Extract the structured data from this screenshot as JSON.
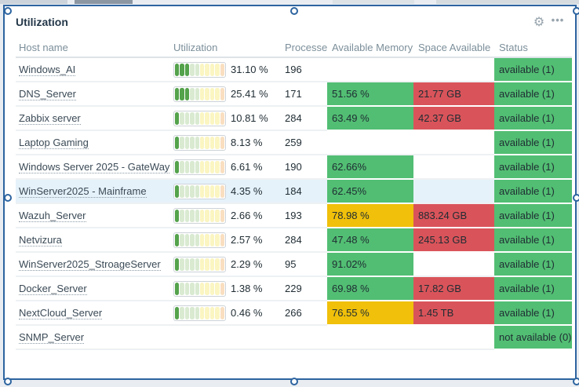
{
  "widget": {
    "title": "Utilization",
    "gear_icon": "⚙",
    "menu_icon": "•••"
  },
  "colors": {
    "selection_blue": "#2d64a0",
    "cell_green": "#52be73",
    "cell_yellow": "#f0c00a",
    "cell_red": "#d9545a",
    "bar_filled_green": "#54a24b",
    "row_highlight": "#e6f2fa"
  },
  "table": {
    "columns": [
      "Host name",
      "Utilization",
      "Processes",
      "Available Memory",
      "Space Available",
      "Status"
    ],
    "bar_segments_total": 10,
    "rows": [
      {
        "host": "Windows_AI",
        "util_pct": "31.10 %",
        "util_filled": 3,
        "processes": "196",
        "memory": null,
        "space": null,
        "status": {
          "text": "available (1)",
          "color": "green"
        },
        "highlighted": false
      },
      {
        "host": "DNS_Server",
        "util_pct": "25.41 %",
        "util_filled": 3,
        "processes": "171",
        "memory": {
          "text": "51.56 %",
          "color": "green"
        },
        "space": {
          "text": "21.77 GB",
          "color": "red"
        },
        "status": {
          "text": "available (1)",
          "color": "green"
        },
        "highlighted": false
      },
      {
        "host": "Zabbix server",
        "util_pct": "10.81 %",
        "util_filled": 1,
        "processes": "284",
        "memory": {
          "text": "63.49 %",
          "color": "green"
        },
        "space": {
          "text": "42.37 GB",
          "color": "red"
        },
        "status": {
          "text": "available (1)",
          "color": "green"
        },
        "highlighted": false
      },
      {
        "host": "Laptop Gaming",
        "util_pct": "8.13 %",
        "util_filled": 1,
        "processes": "259",
        "memory": null,
        "space": null,
        "status": {
          "text": "available (1)",
          "color": "green"
        },
        "highlighted": false
      },
      {
        "host": "Windows Server 2025 - GateWay",
        "util_pct": "6.61 %",
        "util_filled": 1,
        "processes": "190",
        "memory": {
          "text": "62.66%",
          "color": "green"
        },
        "space": null,
        "status": {
          "text": "available (1)",
          "color": "green"
        },
        "highlighted": false
      },
      {
        "host": "WinServer2025 - Mainframe",
        "util_pct": "4.35 %",
        "util_filled": 1,
        "processes": "184",
        "memory": {
          "text": "62.45%",
          "color": "green"
        },
        "space": null,
        "status": {
          "text": "available (1)",
          "color": "green"
        },
        "highlighted": true
      },
      {
        "host": "Wazuh_Server",
        "util_pct": "2.66 %",
        "util_filled": 1,
        "processes": "193",
        "memory": {
          "text": "78.98 %",
          "color": "yellow"
        },
        "space": {
          "text": "883.24 GB",
          "color": "red"
        },
        "status": {
          "text": "available (1)",
          "color": "green"
        },
        "highlighted": false
      },
      {
        "host": "Netvizura",
        "util_pct": "2.57 %",
        "util_filled": 1,
        "processes": "284",
        "memory": {
          "text": "47.48 %",
          "color": "green"
        },
        "space": {
          "text": "245.13 GB",
          "color": "red"
        },
        "status": {
          "text": "available (1)",
          "color": "green"
        },
        "highlighted": false
      },
      {
        "host": "WinServer2025_StroageServer",
        "util_pct": "2.29 %",
        "util_filled": 1,
        "processes": "95",
        "memory": {
          "text": "91.02%",
          "color": "green"
        },
        "space": null,
        "status": {
          "text": "available (1)",
          "color": "green"
        },
        "highlighted": false
      },
      {
        "host": "Docker_Server",
        "util_pct": "1.38 %",
        "util_filled": 1,
        "processes": "229",
        "memory": {
          "text": "69.98 %",
          "color": "green"
        },
        "space": {
          "text": "17.82 GB",
          "color": "red"
        },
        "status": {
          "text": "available (1)",
          "color": "green"
        },
        "highlighted": false
      },
      {
        "host": "NextCloud_Server",
        "util_pct": "0.46 %",
        "util_filled": 1,
        "processes": "266",
        "memory": {
          "text": "76.55 %",
          "color": "yellow"
        },
        "space": {
          "text": "1.45 TB",
          "color": "red"
        },
        "status": {
          "text": "available (1)",
          "color": "green"
        },
        "highlighted": false
      },
      {
        "host": "SNMP_Server",
        "util_pct": null,
        "util_filled": 0,
        "processes": null,
        "memory": null,
        "space": null,
        "status": {
          "text": "not available (0)",
          "color": "green"
        },
        "highlighted": false
      }
    ]
  }
}
